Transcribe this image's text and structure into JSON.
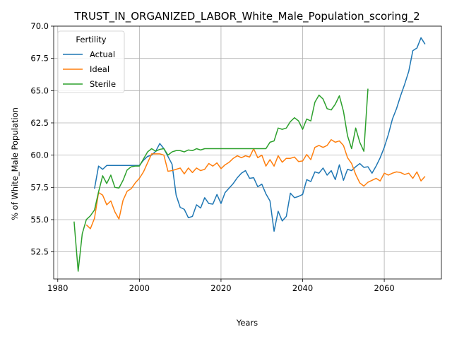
{
  "chart_data": {
    "type": "line",
    "title": "TRUST_IN_ORGANIZED_LABOR_White_Male_Population_scoring_2",
    "xlabel": "Years",
    "ylabel": "% of White_Male Population",
    "xlim": [
      1979,
      2074
    ],
    "ylim": [
      50.4,
      70.0
    ],
    "xticks": [
      1980,
      2000,
      2020,
      2040,
      2060
    ],
    "yticks": [
      52.5,
      55.0,
      57.5,
      60.0,
      62.5,
      65.0,
      67.5,
      70.0
    ],
    "grid": true,
    "legend": {
      "title": "Fertility",
      "placement": "upper left"
    },
    "series": [
      {
        "name": "Actual",
        "color": "#1f77b4",
        "points": [
          [
            1989,
            57.4
          ],
          [
            1990,
            59.15
          ],
          [
            1991,
            58.9
          ],
          [
            1992,
            59.2
          ],
          [
            1993,
            59.2
          ],
          [
            1994,
            59.2
          ],
          [
            1995,
            59.2
          ],
          [
            1996,
            59.2
          ],
          [
            1997,
            59.2
          ],
          [
            1998,
            59.2
          ],
          [
            1999,
            59.2
          ],
          [
            2000,
            59.2
          ],
          [
            2001,
            59.6
          ],
          [
            2002,
            59.9
          ],
          [
            2003,
            60.0
          ],
          [
            2004,
            60.3
          ],
          [
            2005,
            60.9
          ],
          [
            2006,
            60.5
          ],
          [
            2007,
            59.9
          ],
          [
            2008,
            59.3
          ],
          [
            2009,
            56.9
          ],
          [
            2010,
            55.95
          ],
          [
            2011,
            55.8
          ],
          [
            2012,
            55.15
          ],
          [
            2013,
            55.25
          ],
          [
            2014,
            56.15
          ],
          [
            2015,
            55.9
          ],
          [
            2016,
            56.7
          ],
          [
            2017,
            56.25
          ],
          [
            2018,
            56.2
          ],
          [
            2019,
            56.95
          ],
          [
            2020,
            56.25
          ],
          [
            2021,
            57.1
          ],
          [
            2022,
            57.45
          ],
          [
            2023,
            57.8
          ],
          [
            2024,
            58.25
          ],
          [
            2025,
            58.6
          ],
          [
            2026,
            58.8
          ],
          [
            2027,
            58.2
          ],
          [
            2028,
            58.25
          ],
          [
            2029,
            57.55
          ],
          [
            2030,
            57.75
          ],
          [
            2031,
            57.0
          ],
          [
            2032,
            56.45
          ],
          [
            2033,
            54.1
          ],
          [
            2034,
            55.65
          ],
          [
            2035,
            54.9
          ],
          [
            2036,
            55.25
          ],
          [
            2037,
            57.05
          ],
          [
            2038,
            56.7
          ],
          [
            2039,
            56.8
          ],
          [
            2040,
            56.95
          ],
          [
            2041,
            58.1
          ],
          [
            2042,
            57.95
          ],
          [
            2043,
            58.7
          ],
          [
            2044,
            58.6
          ],
          [
            2045,
            59.0
          ],
          [
            2046,
            58.45
          ],
          [
            2047,
            58.8
          ],
          [
            2048,
            58.1
          ],
          [
            2049,
            59.25
          ],
          [
            2050,
            58.05
          ],
          [
            2051,
            58.9
          ],
          [
            2052,
            58.8
          ],
          [
            2053,
            59.1
          ],
          [
            2054,
            59.35
          ],
          [
            2055,
            59.05
          ],
          [
            2056,
            59.1
          ],
          [
            2057,
            58.6
          ],
          [
            2058,
            59.15
          ],
          [
            2059,
            59.8
          ],
          [
            2060,
            60.6
          ],
          [
            2061,
            61.6
          ],
          [
            2062,
            62.8
          ],
          [
            2063,
            63.6
          ],
          [
            2064,
            64.6
          ],
          [
            2065,
            65.5
          ],
          [
            2066,
            66.5
          ],
          [
            2067,
            68.1
          ],
          [
            2068,
            68.3
          ],
          [
            2069,
            69.1
          ],
          [
            2070,
            68.6
          ]
        ]
      },
      {
        "name": "Ideal",
        "color": "#ff7f0e",
        "points": [
          [
            1987,
            54.6
          ],
          [
            1988,
            54.3
          ],
          [
            1989,
            55.1
          ],
          [
            1990,
            57.1
          ],
          [
            1991,
            56.9
          ],
          [
            1992,
            56.15
          ],
          [
            1993,
            56.45
          ],
          [
            1994,
            55.6
          ],
          [
            1995,
            55.05
          ],
          [
            1996,
            56.5
          ],
          [
            1997,
            57.2
          ],
          [
            1998,
            57.4
          ],
          [
            1999,
            57.85
          ],
          [
            2000,
            58.2
          ],
          [
            2001,
            58.7
          ],
          [
            2002,
            59.4
          ],
          [
            2003,
            60.1
          ],
          [
            2004,
            60.1
          ],
          [
            2005,
            60.1
          ],
          [
            2006,
            60.0
          ],
          [
            2007,
            58.75
          ],
          [
            2008,
            58.8
          ],
          [
            2009,
            58.9
          ],
          [
            2010,
            59.0
          ],
          [
            2011,
            58.55
          ],
          [
            2012,
            59.0
          ],
          [
            2013,
            58.65
          ],
          [
            2014,
            59.0
          ],
          [
            2015,
            58.8
          ],
          [
            2016,
            58.9
          ],
          [
            2017,
            59.35
          ],
          [
            2018,
            59.15
          ],
          [
            2019,
            59.4
          ],
          [
            2020,
            58.95
          ],
          [
            2021,
            59.25
          ],
          [
            2022,
            59.45
          ],
          [
            2023,
            59.75
          ],
          [
            2024,
            59.95
          ],
          [
            2025,
            59.8
          ],
          [
            2026,
            59.95
          ],
          [
            2027,
            59.85
          ],
          [
            2028,
            60.5
          ],
          [
            2029,
            59.8
          ],
          [
            2030,
            60.0
          ],
          [
            2031,
            59.15
          ],
          [
            2032,
            59.65
          ],
          [
            2033,
            59.15
          ],
          [
            2034,
            59.95
          ],
          [
            2035,
            59.45
          ],
          [
            2036,
            59.75
          ],
          [
            2037,
            59.75
          ],
          [
            2038,
            59.85
          ],
          [
            2039,
            59.5
          ],
          [
            2040,
            59.55
          ],
          [
            2041,
            60.05
          ],
          [
            2042,
            59.65
          ],
          [
            2043,
            60.6
          ],
          [
            2044,
            60.75
          ],
          [
            2045,
            60.6
          ],
          [
            2046,
            60.75
          ],
          [
            2047,
            61.2
          ],
          [
            2048,
            61.0
          ],
          [
            2049,
            61.1
          ],
          [
            2050,
            60.75
          ],
          [
            2051,
            59.8
          ],
          [
            2052,
            59.35
          ],
          [
            2053,
            58.5
          ],
          [
            2054,
            57.85
          ],
          [
            2055,
            57.6
          ],
          [
            2056,
            57.9
          ],
          [
            2057,
            58.05
          ],
          [
            2058,
            58.2
          ],
          [
            2059,
            58.0
          ],
          [
            2060,
            58.6
          ],
          [
            2061,
            58.45
          ],
          [
            2062,
            58.6
          ],
          [
            2063,
            58.7
          ],
          [
            2064,
            58.65
          ],
          [
            2065,
            58.5
          ],
          [
            2066,
            58.6
          ],
          [
            2067,
            58.2
          ],
          [
            2068,
            58.7
          ],
          [
            2069,
            58.0
          ],
          [
            2070,
            58.35
          ]
        ]
      },
      {
        "name": "Sterile",
        "color": "#2ca02c",
        "points": [
          [
            1984,
            54.85
          ],
          [
            1985,
            51.0
          ],
          [
            1986,
            53.9
          ],
          [
            1987,
            55.0
          ],
          [
            1988,
            55.3
          ],
          [
            1989,
            55.75
          ],
          [
            1990,
            57.15
          ],
          [
            1991,
            58.4
          ],
          [
            1992,
            57.8
          ],
          [
            1993,
            58.45
          ],
          [
            1994,
            57.5
          ],
          [
            1995,
            57.45
          ],
          [
            1996,
            58.05
          ],
          [
            1997,
            58.85
          ],
          [
            1998,
            59.1
          ],
          [
            1999,
            59.15
          ],
          [
            2000,
            59.15
          ],
          [
            2001,
            59.7
          ],
          [
            2002,
            60.25
          ],
          [
            2003,
            60.5
          ],
          [
            2004,
            60.3
          ],
          [
            2005,
            60.45
          ],
          [
            2006,
            60.5
          ],
          [
            2007,
            60.0
          ],
          [
            2008,
            60.25
          ],
          [
            2009,
            60.35
          ],
          [
            2010,
            60.35
          ],
          [
            2011,
            60.25
          ],
          [
            2012,
            60.4
          ],
          [
            2013,
            60.35
          ],
          [
            2014,
            60.5
          ],
          [
            2015,
            60.4
          ],
          [
            2016,
            60.5
          ],
          [
            2017,
            60.5
          ],
          [
            2018,
            60.5
          ],
          [
            2019,
            60.5
          ],
          [
            2020,
            60.5
          ],
          [
            2021,
            60.5
          ],
          [
            2022,
            60.5
          ],
          [
            2023,
            60.5
          ],
          [
            2024,
            60.5
          ],
          [
            2025,
            60.5
          ],
          [
            2026,
            60.5
          ],
          [
            2027,
            60.5
          ],
          [
            2028,
            60.5
          ],
          [
            2029,
            60.5
          ],
          [
            2030,
            60.5
          ],
          [
            2031,
            60.5
          ],
          [
            2032,
            61.0
          ],
          [
            2033,
            61.1
          ],
          [
            2034,
            62.1
          ],
          [
            2035,
            62.0
          ],
          [
            2036,
            62.1
          ],
          [
            2037,
            62.6
          ],
          [
            2038,
            62.9
          ],
          [
            2039,
            62.65
          ],
          [
            2040,
            62.0
          ],
          [
            2041,
            62.8
          ],
          [
            2042,
            62.65
          ],
          [
            2043,
            64.1
          ],
          [
            2044,
            64.65
          ],
          [
            2045,
            64.35
          ],
          [
            2046,
            63.6
          ],
          [
            2047,
            63.5
          ],
          [
            2048,
            63.95
          ],
          [
            2049,
            64.6
          ],
          [
            2050,
            63.4
          ],
          [
            2051,
            61.5
          ],
          [
            2052,
            60.5
          ],
          [
            2053,
            62.1
          ],
          [
            2054,
            61.0
          ],
          [
            2055,
            60.3
          ],
          [
            2056,
            65.15
          ]
        ]
      }
    ]
  }
}
